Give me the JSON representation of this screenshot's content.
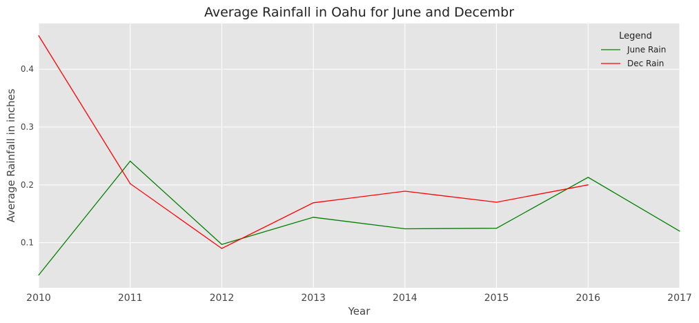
{
  "chart_data": {
    "type": "line",
    "title": "Average Rainfall in Oahu for June and Decembr",
    "xlabel": "Year",
    "ylabel": "Average Rainfall in inches",
    "x": [
      2010,
      2011,
      2012,
      2013,
      2014,
      2015,
      2016,
      2017
    ],
    "xlim": [
      2010,
      2017
    ],
    "ylim": [
      0.022,
      0.479
    ],
    "yticks": [
      0.1,
      0.2,
      0.3,
      0.4
    ],
    "grid": true,
    "legend": {
      "title": "Legend",
      "placement": "top-right"
    },
    "series": [
      {
        "name": "June Rain",
        "color": "#008000",
        "values": [
          0.044,
          0.241,
          0.097,
          0.144,
          0.124,
          0.125,
          0.213,
          0.12
        ]
      },
      {
        "name": "Dec Rain",
        "color": "#ff0000",
        "values": [
          0.458,
          0.202,
          0.09,
          0.169,
          0.189,
          0.17,
          0.2,
          null
        ]
      }
    ],
    "background": "#e5e5e5"
  }
}
